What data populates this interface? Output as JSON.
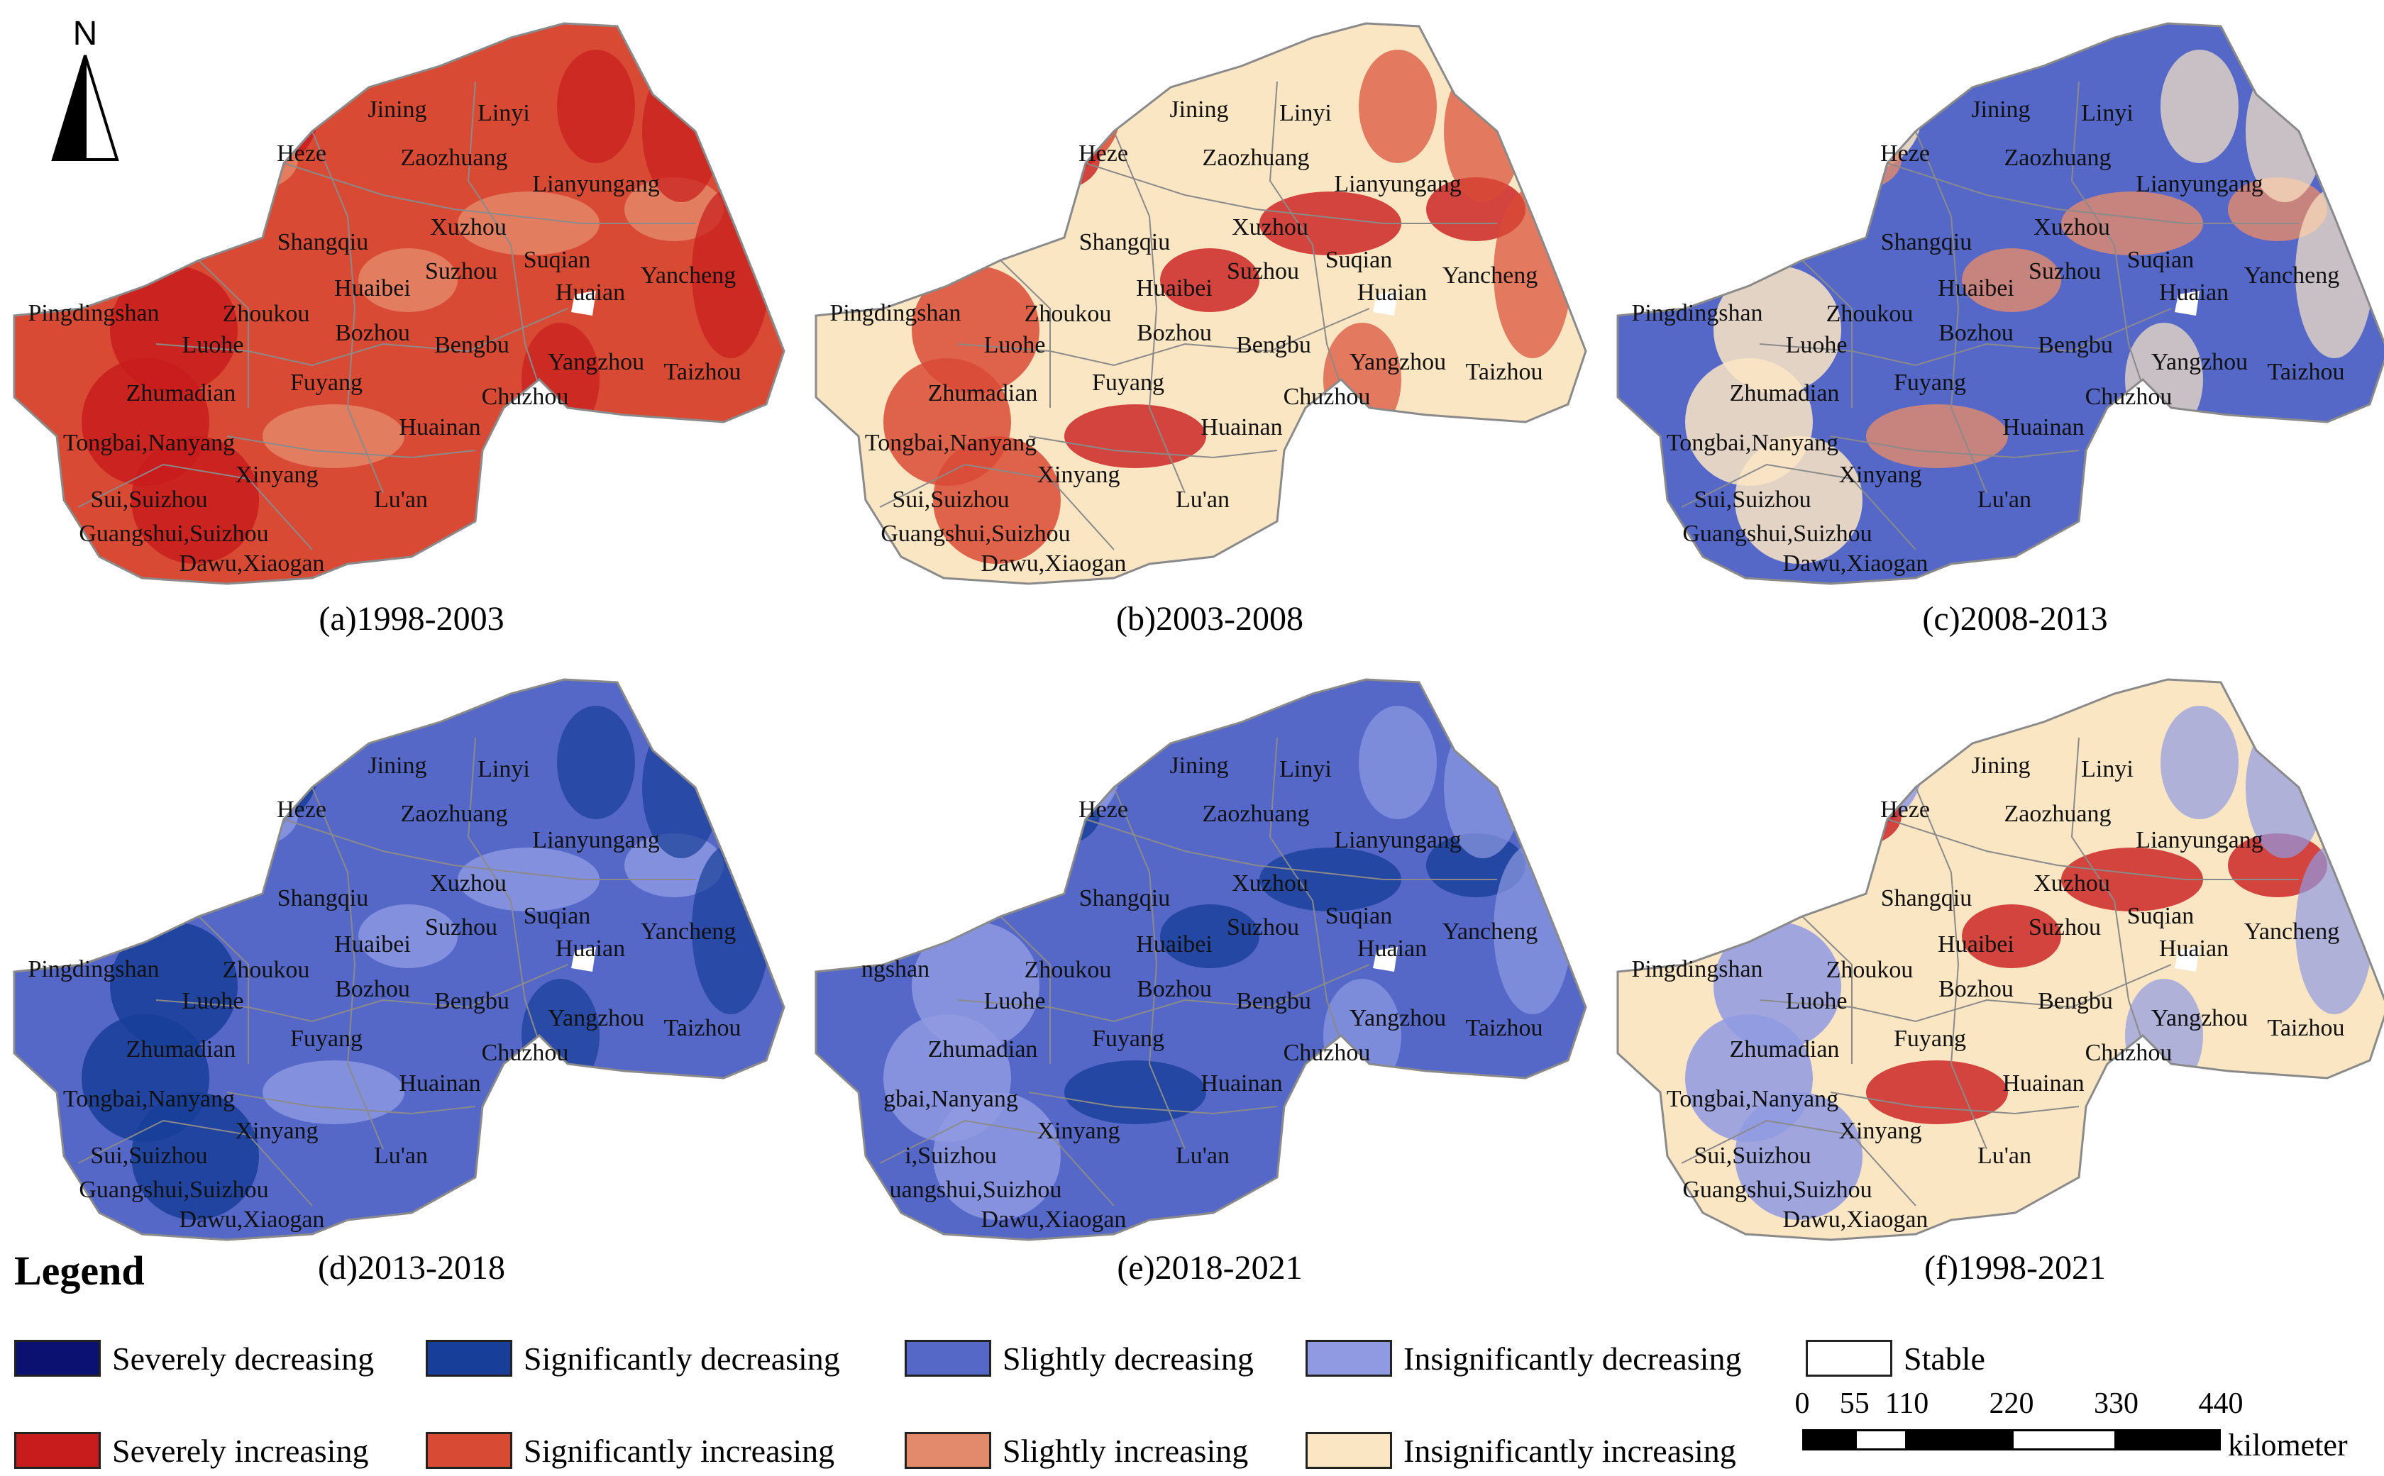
{
  "north_label": "N",
  "colors": {
    "severely_decreasing": "#0a1170",
    "significantly_decreasing": "#173e98",
    "slightly_decreasing": "#5568c8",
    "insignificantly_decreasing": "#8f9ae2",
    "stable": "#ffffff",
    "severely_increasing": "#c81c1c",
    "significantly_increasing": "#d94a35",
    "slightly_increasing": "#e38a6c",
    "insignificantly_increasing": "#fbe6c4",
    "boundary": "#8a8a8a"
  },
  "panels": [
    {
      "id": "a",
      "caption": "(a)1998-2003",
      "base": "significantly_increasing",
      "accent": "severely_increasing",
      "spot": "slightly_increasing"
    },
    {
      "id": "b",
      "caption": "(b)2003-2008",
      "base": "insignificantly_increasing",
      "accent": "significantly_increasing",
      "spot": "severely_increasing"
    },
    {
      "id": "c",
      "caption": "(c)2008-2013",
      "base": "slightly_decreasing",
      "accent": "insignificantly_increasing",
      "spot": "slightly_increasing"
    },
    {
      "id": "d",
      "caption": "(d)2013-2018",
      "base": "slightly_decreasing",
      "accent": "significantly_decreasing",
      "spot": "insignificantly_decreasing"
    },
    {
      "id": "e",
      "caption": "(e)2018-2021",
      "base": "slightly_decreasing",
      "accent": "insignificantly_decreasing",
      "spot": "significantly_decreasing"
    },
    {
      "id": "f",
      "caption": "(f)1998-2021",
      "base": "insignificantly_increasing",
      "accent": "insignificantly_decreasing",
      "spot": "severely_increasing"
    }
  ],
  "cities": [
    "Jining",
    "Linyi",
    "Heze",
    "Zaozhuang",
    "Lianyungang",
    "Xuzhou",
    "Shangqiu",
    "Suqian",
    "Huaibei",
    "Suzhou",
    "Huaian",
    "Yancheng",
    "Pingdingshan",
    "Zhoukou",
    "Luohe",
    "Bozhou",
    "Bengbu",
    "Yangzhou",
    "Taizhou",
    "Fuyang",
    "Zhumadian",
    "Chuzhou",
    "Huainan",
    "Tongbai,Nanyang",
    "Xinyang",
    "Lu'an",
    "Sui,Suizhou",
    "Guangshui,Suizhou",
    "Dawu,Xiaogan"
  ],
  "panel_e_cities": [
    "Jining",
    "Linyi",
    "Heze",
    "Zaozhuang",
    "Lianyungang",
    "Xuzhou",
    "Shangqiu",
    "Suqian",
    "Huaibei",
    "Suzhou",
    "Huaian",
    "Yancheng",
    "ngshan",
    "Zhoukou",
    "Luohe",
    "Bozhou",
    "Bengbu",
    "Yangzhou",
    "Taizhou",
    "Fuyang",
    "Zhumadian",
    "Chuzhou",
    "Huainan",
    "gbai,Nanyang",
    "Xinyang",
    "Lu'an",
    "i,Suizhou",
    "uangshui,Suizhou",
    "Dawu,Xiaogan"
  ],
  "legend": {
    "title": "Legend",
    "items": [
      {
        "key": "severely_decreasing",
        "label": "Severely decreasing"
      },
      {
        "key": "significantly_decreasing",
        "label": "Significantly decreasing"
      },
      {
        "key": "slightly_decreasing",
        "label": "Slightly decreasing"
      },
      {
        "key": "insignificantly_decreasing",
        "label": "Insignificantly decreasing"
      },
      {
        "key": "stable",
        "label": "Stable"
      },
      {
        "key": "severely_increasing",
        "label": "Severely increasing"
      },
      {
        "key": "significantly_increasing",
        "label": "Significantly increasing"
      },
      {
        "key": "slightly_increasing",
        "label": "Slightly increasing"
      },
      {
        "key": "insignificantly_increasing",
        "label": "Insignificantly increasing"
      }
    ]
  },
  "scale": {
    "ticks": [
      "0",
      "55",
      "110",
      "220",
      "330",
      "440"
    ],
    "tick_values_km": [
      0,
      55,
      110,
      220,
      330,
      440
    ],
    "unit": "kilometer"
  }
}
